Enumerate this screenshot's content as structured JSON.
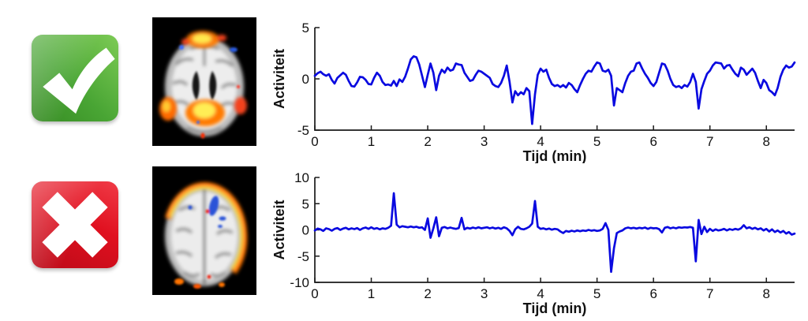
{
  "figure": {
    "rows": [
      {
        "verdict": "approved",
        "icon": "check-icon",
        "scan": "clean fmri activation scan",
        "chart": "good signal"
      },
      {
        "verdict": "rejected",
        "icon": "cross-icon",
        "scan": "motion artifact fmri scan",
        "chart": "artifact signal"
      }
    ]
  },
  "icons": {
    "check": {
      "semantic": "check-icon",
      "glyph_color": "#ffffff"
    },
    "cross": {
      "semantic": "cross-icon",
      "glyph_color": "#ffffff"
    }
  },
  "colors": {
    "signal_line": "#0a0ae0",
    "axis": "#1a1a1a",
    "activation_hot": "#ff7a00",
    "activation_core": "#ffe84d",
    "activation_cold": "#2a52d8"
  },
  "chart_data": [
    {
      "type": "line",
      "title": "",
      "xlabel": "Tijd (min)",
      "ylabel": "Activiteit",
      "xlim": [
        0,
        8.5
      ],
      "ylim": [
        -5,
        5
      ],
      "xticks": [
        0,
        1,
        2,
        3,
        4,
        5,
        6,
        7,
        8
      ],
      "yticks": [
        5,
        0,
        -5
      ],
      "grid": false,
      "legend": null,
      "x_start": 0,
      "x_step": 0.05,
      "y": [
        0.3,
        0.55,
        0.7,
        0.45,
        0.3,
        0.45,
        -0.1,
        -0.45,
        0.1,
        0.35,
        0.6,
        0.4,
        -0.2,
        -0.7,
        -0.75,
        -0.35,
        0.2,
        0.15,
        -0.1,
        -0.5,
        -0.55,
        0.1,
        0.6,
        0.3,
        -0.3,
        -0.6,
        -0.55,
        -0.65,
        -0.2,
        -0.7,
        -0.05,
        -0.3,
        0.2,
        1.0,
        1.9,
        2.2,
        2.1,
        1.4,
        0.3,
        -0.8,
        0.4,
        1.5,
        0.6,
        -1.1,
        0.3,
        0.9,
        0.6,
        1.1,
        0.8,
        0.9,
        1.5,
        1.4,
        1.35,
        0.6,
        0.2,
        -0.2,
        -0.1,
        0.4,
        0.8,
        0.7,
        0.5,
        0.3,
        0.1,
        -0.5,
        -0.7,
        -0.8,
        -0.4,
        0.3,
        1.3,
        -0.3,
        -2.3,
        -1.2,
        -1.6,
        -1.3,
        -1.5,
        -0.9,
        -1.2,
        -4.4,
        -1.5,
        0.4,
        1.0,
        0.7,
        0.9,
        0.1,
        -0.5,
        -0.7,
        -0.6,
        -0.8,
        -0.6,
        -0.85,
        -0.4,
        -0.6,
        -1.0,
        -1.3,
        -0.6,
        0.0,
        0.5,
        0.8,
        0.7,
        1.2,
        1.6,
        1.5,
        0.8,
        0.7,
        0.9,
        0.3,
        -2.6,
        -0.9,
        -1.1,
        -1.3,
        -0.4,
        0.3,
        0.7,
        0.8,
        1.5,
        1.6,
        1.0,
        0.5,
        0.1,
        -0.4,
        -0.7,
        -0.3,
        0.6,
        1.5,
        1.4,
        0.8,
        0.0,
        -0.6,
        -0.8,
        -0.7,
        -0.9,
        -0.6,
        -0.75,
        -0.3,
        0.5,
        -0.3,
        -2.9,
        -1.0,
        -0.2,
        0.5,
        0.8,
        1.3,
        1.6,
        1.55,
        1.5,
        1.0,
        1.3,
        1.35,
        0.9,
        0.5,
        0.25,
        1.1,
        0.9,
        0.4,
        0.7,
        1.0,
        0.6,
        -0.2,
        -0.9,
        -0.1,
        -0.4,
        -1.1,
        -1.3,
        -1.6,
        -0.9,
        0.2,
        0.9,
        1.3,
        1.1,
        1.2,
        1.6
      ]
    },
    {
      "type": "line",
      "title": "",
      "xlabel": "Tijd (min)",
      "ylabel": "Activiteit",
      "xlim": [
        0,
        8.5
      ],
      "ylim": [
        -10,
        10
      ],
      "xticks": [
        0,
        1,
        2,
        3,
        4,
        5,
        6,
        7,
        8
      ],
      "yticks": [
        10,
        5,
        0,
        -5,
        -10
      ],
      "grid": false,
      "legend": null,
      "x_start": 0,
      "x_step": 0.05,
      "y": [
        -0.1,
        0.25,
        0.1,
        -0.2,
        0.3,
        0.15,
        -0.15,
        0.2,
        0.35,
        0.0,
        0.25,
        0.4,
        0.1,
        0.3,
        0.15,
        0.35,
        0.0,
        0.3,
        0.45,
        0.2,
        0.5,
        0.2,
        0.35,
        0.1,
        0.3,
        0.2,
        0.4,
        0.8,
        7.0,
        1.0,
        0.5,
        0.7,
        0.6,
        0.5,
        0.65,
        0.5,
        0.6,
        0.4,
        0.5,
        0.0,
        2.2,
        -1.5,
        0.3,
        2.4,
        -1.2,
        0.4,
        0.55,
        0.3,
        0.45,
        0.3,
        0.2,
        0.35,
        2.3,
        0.1,
        0.4,
        0.25,
        0.45,
        0.3,
        0.5,
        0.3,
        0.4,
        0.5,
        0.3,
        0.45,
        0.25,
        0.4,
        0.2,
        0.5,
        0.3,
        -0.2,
        -1.0,
        0.1,
        0.6,
        0.2,
        0.1,
        0.3,
        0.6,
        1.2,
        5.5,
        0.6,
        0.2,
        0.3,
        0.1,
        0.25,
        0.05,
        0.2,
        0.1,
        -0.3,
        -0.6,
        -0.2,
        -0.35,
        -0.15,
        -0.3,
        -0.1,
        -0.25,
        -0.1,
        -0.2,
        0.0,
        -0.15,
        -0.05,
        -0.2,
        -0.1,
        0.2,
        1.3,
        0.0,
        -8.0,
        -3.5,
        -0.6,
        -0.3,
        -0.1,
        0.3,
        0.45,
        0.3,
        0.4,
        0.25,
        0.4,
        0.3,
        0.45,
        0.2,
        0.4,
        0.3,
        0.35,
        0.15,
        -0.5,
        0.4,
        0.55,
        0.3,
        0.45,
        0.3,
        0.5,
        0.4,
        0.5,
        0.45,
        0.55,
        0.4,
        -6.0,
        1.9,
        -0.8,
        0.6,
        -0.4,
        0.2,
        -0.2,
        0.1,
        -0.1,
        0.0,
        0.2,
        -0.1,
        0.15,
        0.0,
        0.2,
        0.05,
        0.3,
        0.9,
        0.3,
        0.5,
        0.2,
        0.4,
        0.1,
        0.3,
        -0.1,
        0.2,
        -0.3,
        0.1,
        -0.4,
        -0.1,
        -0.5,
        -0.2,
        -0.7,
        -0.4,
        -0.9,
        -0.7
      ]
    }
  ]
}
